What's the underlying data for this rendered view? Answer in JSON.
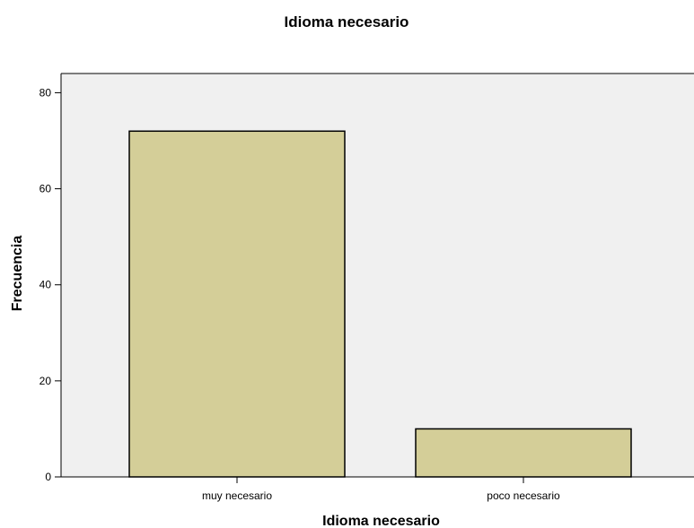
{
  "chart_data": {
    "type": "bar",
    "title": "Idioma necesario",
    "xlabel": "Idioma necesario",
    "ylabel": "Frecuencia",
    "categories": [
      "muy necesario",
      "poco necesario"
    ],
    "values": [
      72,
      10
    ],
    "ylim": [
      0,
      84
    ],
    "yticks": [
      0,
      20,
      40,
      60,
      80
    ],
    "grid": false,
    "legend": "none",
    "colors": {
      "bar_fill": "#d4ce98",
      "bar_stroke": "#000000",
      "plot_background": "#f0f0f0",
      "axis": "#000000"
    }
  }
}
